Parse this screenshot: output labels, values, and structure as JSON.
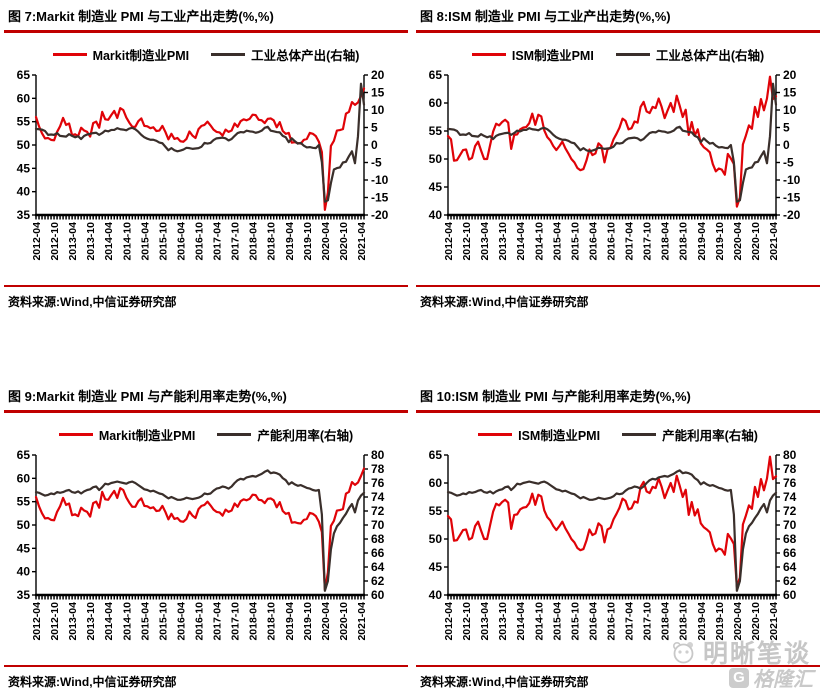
{
  "source_label": "资料来源:Wind,中信证券研究部",
  "watermarks": {
    "brand_top": "明晰笔谈",
    "brand_bottom": "格隆汇"
  },
  "colors": {
    "accent_red": "#c00000",
    "series_red": "#e00308",
    "series_dark": "#3a2f2b"
  },
  "x_tick_labels": [
    "2012-04",
    "2012-10",
    "2013-04",
    "2013-10",
    "2014-04",
    "2014-10",
    "2015-04",
    "2015-10",
    "2016-04",
    "2016-10",
    "2017-04",
    "2017-10",
    "2018-04",
    "2018-10",
    "2019-04",
    "2019-10",
    "2020-04",
    "2020-10",
    "2021-04"
  ],
  "chart_data": [
    {
      "type": "line",
      "title": "图 7:Markit 制造业 PMI 与工业产出走势(%,%)",
      "x_start": "2012-04",
      "x_end": "2021-05",
      "x_interval": "monthly",
      "left_axis": {
        "min": 35,
        "max": 65,
        "ticks": [
          65,
          60,
          55,
          50,
          45,
          40,
          35
        ]
      },
      "right_axis": {
        "min": -20,
        "max": 20,
        "ticks": [
          20,
          15,
          10,
          5,
          0,
          -5,
          -10,
          -15,
          -20
        ]
      },
      "series": [
        {
          "name": "Markit制造业PMI",
          "axis": "left",
          "color": "#e00308",
          "values": [
            56,
            54,
            52.5,
            51.4,
            51.5,
            51.1,
            51,
            52.8,
            54,
            55.8,
            54.3,
            54.6,
            52.1,
            52.3,
            51.9,
            53.7,
            53.1,
            52.8,
            51.8,
            54.7,
            55,
            53.7,
            57.1,
            55.5,
            55.4,
            56.4,
            57.3,
            55.8,
            57.9,
            57.5,
            55.9,
            54.8,
            53.9,
            53.9,
            55.1,
            55.7,
            54.1,
            54,
            53.6,
            53.8,
            53,
            53.1,
            54.1,
            52.8,
            51.2,
            52.4,
            51.3,
            51.5,
            50.8,
            50.7,
            51.3,
            52.9,
            52,
            51.5,
            53.4,
            54.1,
            54.3,
            55,
            54.2,
            53.3,
            52.8,
            52.7,
            52,
            53.3,
            52.8,
            53.1,
            54.6,
            53.9,
            55.1,
            55.5,
            55.3,
            55.6,
            56.5,
            56.4,
            55.4,
            55.3,
            54.7,
            55.6,
            55.7,
            55.3,
            53.8,
            54.9,
            53,
            52.4,
            52.6,
            50.5,
            50.6,
            50.4,
            50.3,
            51.1,
            51.3,
            52.6,
            52.4,
            51.9,
            50.7,
            48.5,
            36.1,
            39.8,
            49.8,
            50.9,
            53.1,
            53.2,
            53.4,
            56.7,
            57.1,
            59.2,
            58.6,
            59.1,
            60.5,
            62.1
          ]
        },
        {
          "name": "工业总体产出(右轴)",
          "axis": "right",
          "color": "#3a2f2b",
          "values": [
            4.6,
            4.5,
            4.4,
            4,
            2.9,
            3,
            2.9,
            3.4,
            2.6,
            2.5,
            2.4,
            3.1,
            2.6,
            2.2,
            2.5,
            1.7,
            2.6,
            3,
            3.2,
            3.4,
            3.5,
            2.9,
            3.4,
            4.1,
            3.9,
            4.3,
            4.3,
            4.8,
            4.5,
            4.4,
            4.2,
            4.7,
            4.9,
            4.5,
            3.8,
            2.9,
            2.2,
            1.8,
            1.5,
            1.5,
            1.2,
            0.7,
            0.5,
            -0.5,
            -1.5,
            -0.9,
            -1.5,
            -1.8,
            -1.6,
            -1.3,
            -0.8,
            -0.9,
            -1.1,
            -1,
            -0.9,
            -0.5,
            0.6,
            0.4,
            0.6,
            1.4,
            1.9,
            2,
            2.1,
            1.9,
            1.3,
            1.7,
            2.6,
            3.4,
            3.7,
            3.6,
            4.1,
            3.9,
            3.8,
            3.5,
            3.7,
            4.1,
            4.9,
            5.2,
            4.1,
            3.9,
            3.7,
            3.6,
            2.6,
            2.2,
            0.8,
            1.9,
            1.1,
            0.4,
            0.6,
            -0.2,
            -0.7,
            -0.6,
            -0.8,
            -0.9,
            0,
            -4.9,
            -16.2,
            -15.8,
            -10.9,
            -7,
            -6.6,
            -6.4,
            -5,
            -4.8,
            -3.2,
            -1.8,
            -5.2,
            2.5,
            17.5,
            11.5
          ]
        }
      ]
    },
    {
      "type": "line",
      "title": "图 8:ISM 制造业 PMI 与工业产出走势(%,%)",
      "x_start": "2012-04",
      "x_end": "2021-05",
      "x_interval": "monthly",
      "left_axis": {
        "min": 40,
        "max": 65,
        "ticks": [
          65,
          60,
          55,
          50,
          45,
          40
        ]
      },
      "right_axis": {
        "min": -20,
        "max": 20,
        "ticks": [
          20,
          15,
          10,
          5,
          0,
          -5,
          -10,
          -15,
          -20
        ]
      },
      "series": [
        {
          "name": "ISM制造业PMI",
          "axis": "left",
          "color": "#e00308",
          "values": [
            54.1,
            53.5,
            49.7,
            49.8,
            50.7,
            51.6,
            51.7,
            49.9,
            50.2,
            52.3,
            53.1,
            51.5,
            50,
            50,
            52.5,
            54.9,
            56.3,
            56,
            56.6,
            57,
            56.5,
            51.8,
            54.3,
            54.4,
            55.3,
            55.6,
            55.7,
            56.4,
            58.1,
            56.1,
            57.9,
            57.6,
            55.1,
            53.9,
            53.3,
            52.3,
            51.6,
            52.3,
            53.1,
            51.9,
            51,
            50,
            49.4,
            48.4,
            48,
            48.2,
            49.7,
            51.7,
            50.7,
            51,
            52.8,
            52.3,
            49.4,
            51.7,
            52,
            53.5,
            54.5,
            55.6,
            57.2,
            56.8,
            55.3,
            55.5,
            56.7,
            56.5,
            59.3,
            60.2,
            58.5,
            58.2,
            59.3,
            59.1,
            60.8,
            59.3,
            57.3,
            58.7,
            60,
            58.4,
            61.3,
            59.5,
            57.5,
            58.8,
            54.3,
            56.6,
            54.2,
            55.3,
            52.8,
            52.1,
            51.7,
            51.2,
            49.1,
            47.8,
            48.3,
            48.1,
            47.2,
            50.9,
            50.1,
            49.1,
            41.5,
            43.1,
            52.6,
            54.2,
            56,
            55.4,
            59.3,
            57.5,
            60.7,
            58.7,
            60.8,
            64.7,
            60.7,
            61.2
          ]
        },
        {
          "name": "工业总体产出(右轴)",
          "axis": "right",
          "color": "#3a2f2b",
          "values": [
            4.6,
            4.5,
            4.4,
            4,
            2.9,
            3,
            2.9,
            3.4,
            2.6,
            2.5,
            2.4,
            3.1,
            2.6,
            2.2,
            2.5,
            1.7,
            2.6,
            3,
            3.2,
            3.4,
            3.5,
            2.9,
            3.4,
            4.1,
            3.9,
            4.3,
            4.3,
            4.8,
            4.5,
            4.4,
            4.2,
            4.7,
            4.9,
            4.5,
            3.8,
            2.9,
            2.2,
            1.8,
            1.5,
            1.5,
            1.2,
            0.7,
            0.5,
            -0.5,
            -1.5,
            -0.9,
            -1.5,
            -1.8,
            -1.6,
            -1.3,
            -0.8,
            -0.9,
            -1.1,
            -1,
            -0.9,
            -0.5,
            0.6,
            0.4,
            0.6,
            1.4,
            1.9,
            2,
            2.1,
            1.9,
            1.3,
            1.7,
            2.6,
            3.4,
            3.7,
            3.6,
            4.1,
            3.9,
            3.8,
            3.5,
            3.7,
            4.1,
            4.9,
            5.2,
            4.1,
            3.9,
            3.7,
            3.6,
            2.6,
            2.2,
            0.8,
            1.9,
            1.1,
            0.4,
            0.6,
            -0.2,
            -0.7,
            -0.6,
            -0.8,
            -0.9,
            0,
            -4.9,
            -16.2,
            -15.8,
            -10.9,
            -7,
            -6.6,
            -6.4,
            -5,
            -4.8,
            -3.2,
            -1.8,
            -5.2,
            2.5,
            17.5,
            11.5
          ]
        }
      ]
    },
    {
      "type": "line",
      "title": "图 9:Markit 制造业 PMI 与产能利用率走势(%,%)",
      "x_start": "2012-04",
      "x_end": "2021-05",
      "x_interval": "monthly",
      "left_axis": {
        "min": 35,
        "max": 65,
        "ticks": [
          65,
          60,
          55,
          50,
          45,
          40,
          35
        ]
      },
      "right_axis": {
        "min": 60,
        "max": 80,
        "ticks": [
          80,
          78,
          76,
          74,
          72,
          70,
          68,
          66,
          64,
          62,
          60
        ]
      },
      "series": [
        {
          "name": "Markit制造业PMI",
          "axis": "left",
          "color": "#e00308",
          "values": [
            56,
            54,
            52.5,
            51.4,
            51.5,
            51.1,
            51,
            52.8,
            54,
            55.8,
            54.3,
            54.6,
            52.1,
            52.3,
            51.9,
            53.7,
            53.1,
            52.8,
            51.8,
            54.7,
            55,
            53.7,
            57.1,
            55.5,
            55.4,
            56.4,
            57.3,
            55.8,
            57.9,
            57.5,
            55.9,
            54.8,
            53.9,
            53.9,
            55.1,
            55.7,
            54.1,
            54,
            53.6,
            53.8,
            53,
            53.1,
            54.1,
            52.8,
            51.2,
            52.4,
            51.3,
            51.5,
            50.8,
            50.7,
            51.3,
            52.9,
            52,
            51.5,
            53.4,
            54.1,
            54.3,
            55,
            54.2,
            53.3,
            52.8,
            52.7,
            52,
            53.3,
            52.8,
            53.1,
            54.6,
            53.9,
            55.1,
            55.5,
            55.3,
            55.6,
            56.5,
            56.4,
            55.4,
            55.3,
            54.7,
            55.6,
            55.7,
            55.3,
            53.8,
            54.9,
            53,
            52.4,
            52.6,
            50.5,
            50.6,
            50.4,
            50.3,
            51.1,
            51.3,
            52.6,
            52.4,
            51.9,
            50.7,
            48.5,
            36.1,
            39.8,
            49.8,
            50.9,
            53.1,
            53.2,
            53.4,
            56.7,
            57.1,
            59.2,
            58.6,
            59.1,
            60.5,
            62.1
          ]
        },
        {
          "name": "产能利用率(右轴)",
          "axis": "right",
          "color": "#3a2f2b",
          "values": [
            74.7,
            74.6,
            74.4,
            74.2,
            74.3,
            74.5,
            74.4,
            74.7,
            74.6,
            74.7,
            74.9,
            75,
            74.7,
            74.6,
            74.8,
            74.5,
            74.8,
            75,
            75.1,
            75.4,
            75.5,
            75,
            75.4,
            75.9,
            75.8,
            76,
            76.1,
            76.2,
            76.1,
            76,
            75.9,
            76.1,
            76.2,
            76,
            75.7,
            75.4,
            75.1,
            75,
            74.8,
            74.9,
            74.7,
            74.5,
            74.4,
            74.1,
            73.8,
            74,
            73.8,
            73.6,
            73.6,
            73.7,
            73.9,
            73.8,
            73.7,
            73.8,
            73.9,
            74.1,
            74.5,
            74.4,
            74.5,
            74.9,
            75.2,
            75.3,
            75.5,
            75.4,
            75.2,
            75.5,
            76,
            76.4,
            76.6,
            76.5,
            76.8,
            76.9,
            77,
            76.9,
            77.1,
            77.3,
            77.6,
            77.8,
            77.4,
            77.5,
            77.4,
            77.2,
            76.7,
            76.4,
            75.8,
            76.1,
            75.8,
            75.6,
            75.7,
            75.5,
            75.3,
            75.2,
            75,
            74.9,
            75,
            71.5,
            60.6,
            62,
            66.5,
            68.8,
            69.8,
            70.3,
            71,
            71.6,
            72.4,
            73,
            71.8,
            73.5,
            74.2,
            74.6
          ]
        }
      ]
    },
    {
      "type": "line",
      "title": "图 10:ISM 制造业 PMI 与产能利用率走势(%,%)",
      "x_start": "2012-04",
      "x_end": "2021-05",
      "x_interval": "monthly",
      "left_axis": {
        "min": 40,
        "max": 65,
        "ticks": [
          65,
          60,
          55,
          50,
          45,
          40
        ]
      },
      "right_axis": {
        "min": 60,
        "max": 80,
        "ticks": [
          80,
          78,
          76,
          74,
          72,
          70,
          68,
          66,
          64,
          62,
          60
        ]
      },
      "series": [
        {
          "name": "ISM制造业PMI",
          "axis": "left",
          "color": "#e00308",
          "values": [
            54.1,
            53.5,
            49.7,
            49.8,
            50.7,
            51.6,
            51.7,
            49.9,
            50.2,
            52.3,
            53.1,
            51.5,
            50,
            50,
            52.5,
            54.9,
            56.3,
            56,
            56.6,
            57,
            56.5,
            51.8,
            54.3,
            54.4,
            55.3,
            55.6,
            55.7,
            56.4,
            58.1,
            56.1,
            57.9,
            57.6,
            55.1,
            53.9,
            53.3,
            52.3,
            51.6,
            52.3,
            53.1,
            51.9,
            51,
            50,
            49.4,
            48.4,
            48,
            48.2,
            49.7,
            51.7,
            50.7,
            51,
            52.8,
            52.3,
            49.4,
            51.7,
            52,
            53.5,
            54.5,
            55.6,
            57.2,
            56.8,
            55.3,
            55.5,
            56.7,
            56.5,
            59.3,
            60.2,
            58.5,
            58.2,
            59.3,
            59.1,
            60.8,
            59.3,
            57.3,
            58.7,
            60,
            58.4,
            61.3,
            59.5,
            57.5,
            58.8,
            54.3,
            56.6,
            54.2,
            55.3,
            52.8,
            52.1,
            51.7,
            51.2,
            49.1,
            47.8,
            48.3,
            48.1,
            47.2,
            50.9,
            50.1,
            49.1,
            41.5,
            43.1,
            52.6,
            54.2,
            56,
            55.4,
            59.3,
            57.5,
            60.7,
            58.7,
            60.8,
            64.7,
            60.7,
            61.2
          ]
        },
        {
          "name": "产能利用率(右轴)",
          "axis": "right",
          "color": "#3a2f2b",
          "values": [
            74.7,
            74.6,
            74.4,
            74.2,
            74.3,
            74.5,
            74.4,
            74.7,
            74.6,
            74.7,
            74.9,
            75,
            74.7,
            74.6,
            74.8,
            74.5,
            74.8,
            75,
            75.1,
            75.4,
            75.5,
            75,
            75.4,
            75.9,
            75.8,
            76,
            76.1,
            76.2,
            76.1,
            76,
            75.9,
            76.1,
            76.2,
            76,
            75.7,
            75.4,
            75.1,
            75,
            74.8,
            74.9,
            74.7,
            74.5,
            74.4,
            74.1,
            73.8,
            74,
            73.8,
            73.6,
            73.6,
            73.7,
            73.9,
            73.8,
            73.7,
            73.8,
            73.9,
            74.1,
            74.5,
            74.4,
            74.5,
            74.9,
            75.2,
            75.3,
            75.5,
            75.4,
            75.2,
            75.5,
            76,
            76.4,
            76.6,
            76.5,
            76.8,
            76.9,
            77,
            76.9,
            77.1,
            77.3,
            77.6,
            77.8,
            77.4,
            77.5,
            77.4,
            77.2,
            76.7,
            76.4,
            75.8,
            76.1,
            75.8,
            75.6,
            75.7,
            75.5,
            75.3,
            75.2,
            75,
            74.9,
            75,
            71.5,
            60.6,
            62,
            66.5,
            68.8,
            69.8,
            70.3,
            71,
            71.6,
            72.4,
            73,
            71.8,
            73.5,
            74.2,
            74.6
          ]
        }
      ]
    }
  ]
}
